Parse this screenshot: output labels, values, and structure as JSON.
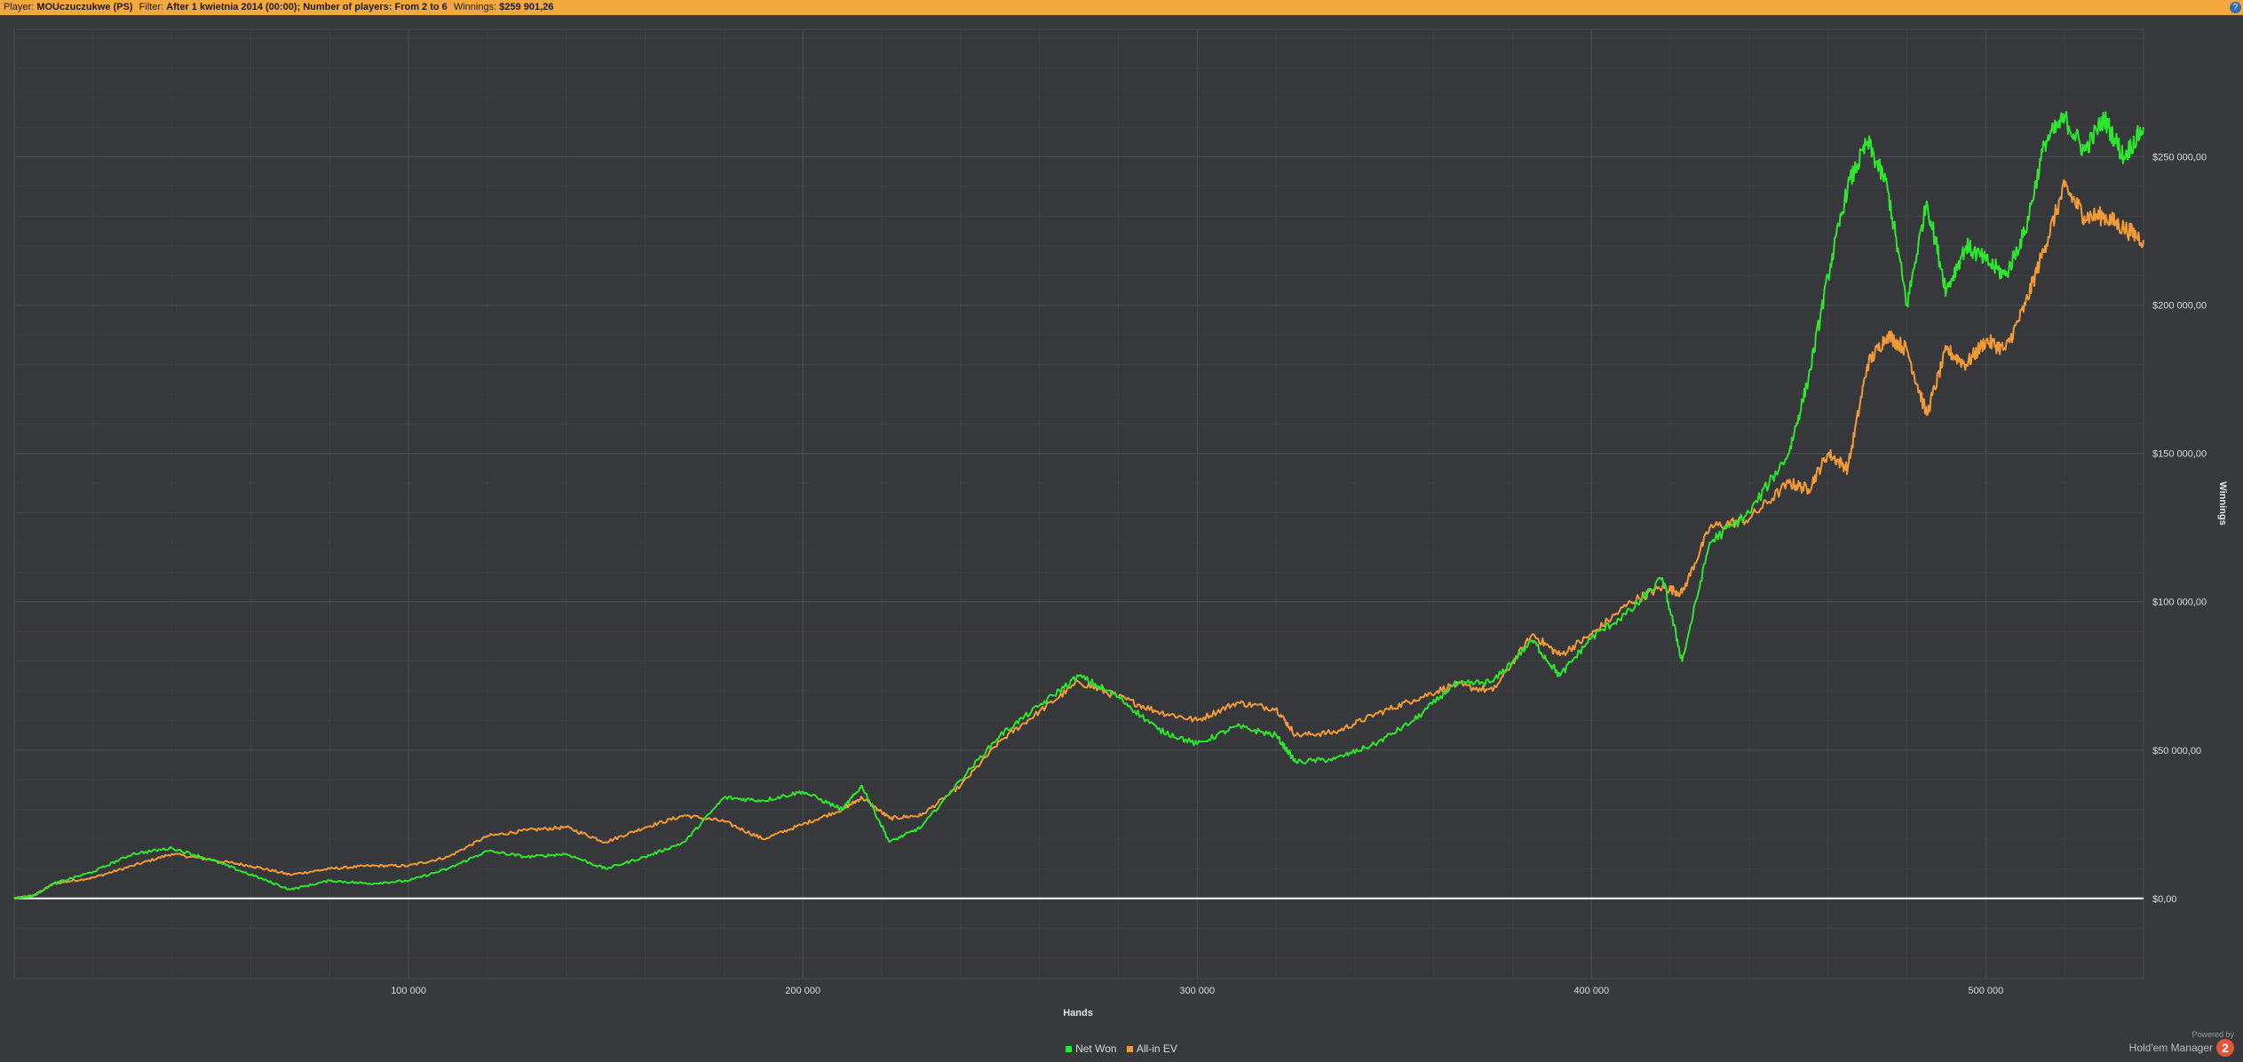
{
  "header": {
    "player_label": "Player:",
    "player_value": "MOUczuczukwe (PS)",
    "filter_label": "Filter:",
    "filter_value": "After 1 kwietnia 2014 (00:00); Number of players: From 2 to 6",
    "winnings_label": "Winnings:",
    "winnings_value": "$259 901,26",
    "help_icon": "question-mark-icon"
  },
  "chart_data": {
    "type": "line",
    "title": "",
    "xlabel": "Hands",
    "ylabel": "Winnings",
    "xlim": [
      0,
      540000
    ],
    "ylim": [
      -27000,
      293000
    ],
    "x_ticks": [
      100000,
      200000,
      300000,
      400000,
      500000
    ],
    "x_tick_labels": [
      "100 000",
      "200 000",
      "300 000",
      "400 000",
      "500 000"
    ],
    "y_ticks": [
      0,
      50000,
      100000,
      150000,
      200000,
      250000
    ],
    "y_tick_labels": [
      "$0,00",
      "$50 000,00",
      "$100 000,00",
      "$150 000,00",
      "$200 000,00",
      "$250 000,00"
    ],
    "grid": true,
    "legend_position": "bottom-center",
    "series": [
      {
        "name": "Net Won",
        "color": "#2ee62e",
        "x": [
          0,
          5000,
          10000,
          20000,
          30000,
          40000,
          50000,
          60000,
          70000,
          80000,
          90000,
          100000,
          110000,
          120000,
          130000,
          140000,
          150000,
          160000,
          170000,
          180000,
          190000,
          200000,
          210000,
          215000,
          222000,
          230000,
          240000,
          250000,
          260000,
          270000,
          280000,
          290000,
          300000,
          310000,
          320000,
          325000,
          335000,
          345000,
          355000,
          365000,
          375000,
          385000,
          392000,
          400000,
          410000,
          418000,
          423000,
          430000,
          440000,
          450000,
          455000,
          460000,
          465000,
          470000,
          475000,
          480000,
          485000,
          490000,
          495000,
          500000,
          505000,
          510000,
          515000,
          520000,
          525000,
          530000,
          535000,
          540000
        ],
        "values": [
          0,
          1000,
          5000,
          9000,
          15000,
          17000,
          13000,
          8000,
          3000,
          6000,
          5000,
          6000,
          10000,
          16000,
          14000,
          15000,
          10000,
          14000,
          19000,
          34000,
          33000,
          36000,
          30000,
          38000,
          19000,
          24000,
          40000,
          55000,
          65000,
          75000,
          68000,
          57000,
          52000,
          58000,
          55000,
          46000,
          47000,
          52000,
          60000,
          72000,
          73000,
          87000,
          75000,
          88000,
          97000,
          108000,
          80000,
          120000,
          130000,
          150000,
          175000,
          210000,
          240000,
          255000,
          240000,
          200000,
          235000,
          205000,
          220000,
          215000,
          210000,
          225000,
          255000,
          263000,
          252000,
          263000,
          250000,
          260000
        ]
      },
      {
        "name": "All-in EV",
        "color": "#f29a38",
        "x": [
          0,
          5000,
          10000,
          20000,
          30000,
          40000,
          50000,
          60000,
          70000,
          80000,
          90000,
          100000,
          110000,
          120000,
          130000,
          140000,
          150000,
          160000,
          170000,
          180000,
          190000,
          200000,
          210000,
          215000,
          222000,
          230000,
          240000,
          250000,
          260000,
          270000,
          280000,
          290000,
          300000,
          310000,
          320000,
          325000,
          335000,
          345000,
          355000,
          365000,
          375000,
          385000,
          392000,
          400000,
          410000,
          418000,
          423000,
          430000,
          440000,
          450000,
          455000,
          460000,
          465000,
          470000,
          475000,
          480000,
          485000,
          490000,
          495000,
          500000,
          505000,
          510000,
          515000,
          520000,
          525000,
          530000,
          535000,
          540000
        ],
        "values": [
          0,
          1000,
          5000,
          7000,
          11000,
          15000,
          13000,
          11000,
          8000,
          10000,
          11000,
          11000,
          14000,
          21000,
          23000,
          24000,
          19000,
          24000,
          28000,
          26000,
          20000,
          25000,
          30000,
          34000,
          27000,
          28000,
          38000,
          53000,
          63000,
          73000,
          68000,
          63000,
          60000,
          66000,
          64000,
          55000,
          56000,
          62000,
          67000,
          72000,
          70000,
          89000,
          82000,
          89000,
          100000,
          105000,
          103000,
          125000,
          128000,
          140000,
          138000,
          150000,
          145000,
          180000,
          190000,
          185000,
          163000,
          185000,
          180000,
          188000,
          185000,
          200000,
          220000,
          240000,
          230000,
          230000,
          226000,
          222000
        ]
      }
    ]
  },
  "legend": {
    "items": [
      {
        "label": "Net Won",
        "color": "#2ee62e"
      },
      {
        "label": "All-in EV",
        "color": "#f29a38"
      }
    ]
  },
  "branding": {
    "powered_by": "Powered by",
    "product": "Hold'em Manager",
    "logo_text": "2"
  }
}
